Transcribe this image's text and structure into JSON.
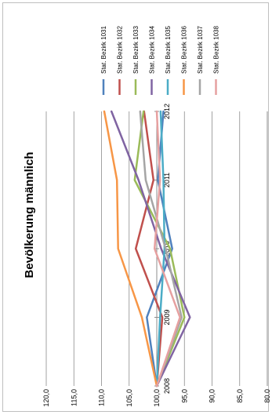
{
  "chart_data": {
    "type": "line",
    "orientation": "rotated-90-clockwise",
    "title": "Bevölkerung männlich",
    "categories": [
      "2008",
      "2009",
      "2010",
      "2011",
      "2012"
    ],
    "ylim": [
      80,
      120
    ],
    "yticks": [
      "120,0",
      "115,0",
      "110,0",
      "105,0",
      "100,0",
      "95,0",
      "90,0",
      "85,0",
      "80,0"
    ],
    "grid": true,
    "legend_position": "top",
    "series": [
      {
        "name": "Stat. Bezirk 1031",
        "color": "#4f81bd",
        "values": [
          100,
          101.8,
          97.2,
          99.8,
          98.8
        ]
      },
      {
        "name": "Stat. Bezirk 1032",
        "color": "#c0504d",
        "values": [
          100,
          99.0,
          103.8,
          100.6,
          102.3
        ]
      },
      {
        "name": "Stat. Bezirk 1033",
        "color": "#9bbb59",
        "values": [
          100,
          95.0,
          97.6,
          104.0,
          102.4
        ]
      },
      {
        "name": "Stat. Bezirk 1034",
        "color": "#8064a2",
        "values": [
          100,
          94.0,
          99.2,
          103.3,
          108.2
        ]
      },
      {
        "name": "Stat. Bezirk 1035",
        "color": "#4bacc6",
        "values": [
          100,
          99.4,
          98.6,
          98.8,
          99.3
        ]
      },
      {
        "name": "Stat. Bezirk 1036",
        "color": "#f79646",
        "values": [
          100,
          102.7,
          107.0,
          107.2,
          109.5
        ]
      },
      {
        "name": "Stat. Bezirk 1037",
        "color": "#a5a5a5",
        "values": [
          100,
          95.5,
          98.4,
          102.0,
          103.0
        ]
      },
      {
        "name": "Stat. Bezirk 1038",
        "color": "#e6a0a0",
        "values": [
          100,
          95.8,
          100.4,
          99.4,
          100.0
        ]
      }
    ]
  }
}
